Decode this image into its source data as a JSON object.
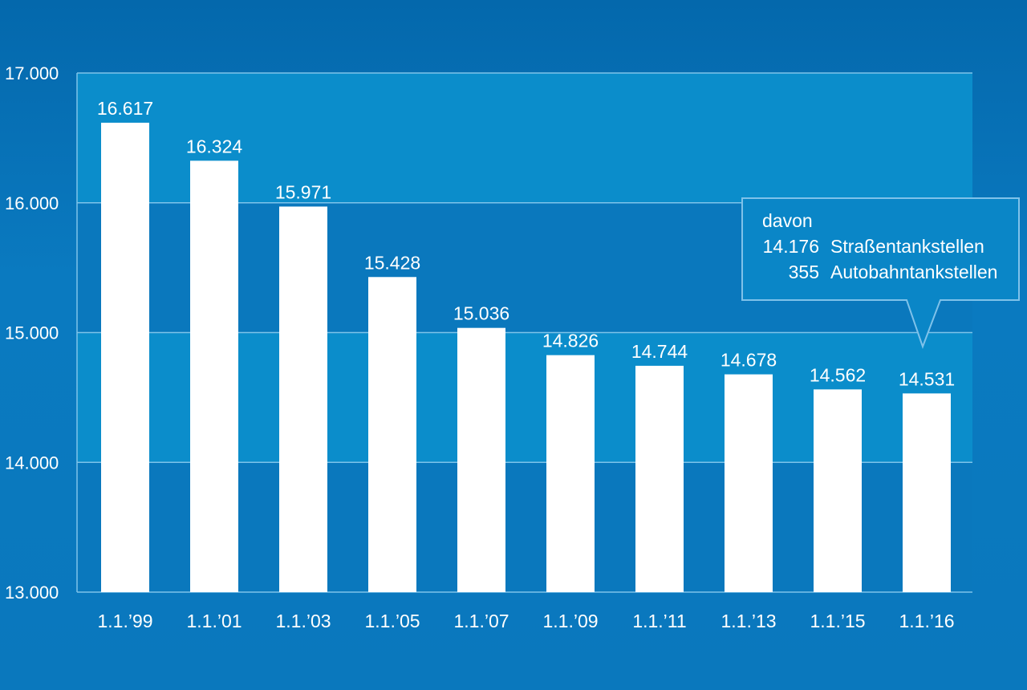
{
  "chart_data": {
    "type": "bar",
    "categories": [
      "1.1.’99",
      "1.1.’01",
      "1.1.’03",
      "1.1.’05",
      "1.1.’07",
      "1.1.’09",
      "1.1.’11",
      "1.1.’13",
      "1.1.’15",
      "1.1.’16"
    ],
    "values": [
      16617,
      16324,
      15971,
      15428,
      15036,
      14826,
      14744,
      14678,
      14562,
      14531
    ],
    "value_labels": [
      "16.617",
      "16.324",
      "15.971",
      "15.428",
      "15.036",
      "14.826",
      "14.744",
      "14.678",
      "14.562",
      "14.531"
    ],
    "ylim": [
      13000,
      17000
    ],
    "yticks": [
      13000,
      14000,
      15000,
      16000,
      17000
    ],
    "ytick_labels": [
      "13.000",
      "14.000",
      "15.000",
      "16.000",
      "17.000"
    ],
    "grid": true,
    "title": "",
    "xlabel": "",
    "ylabel": "",
    "bar_color": "#ffffff",
    "band_colors": [
      "#0a78bd",
      "#0b8dcb"
    ],
    "annotation": {
      "target_category": "1.1.’16",
      "heading": "davon",
      "rows": [
        {
          "value": "14.176",
          "label": "Straßentankstellen"
        },
        {
          "value": "355",
          "label": "Autobahntankstellen"
        }
      ]
    }
  }
}
